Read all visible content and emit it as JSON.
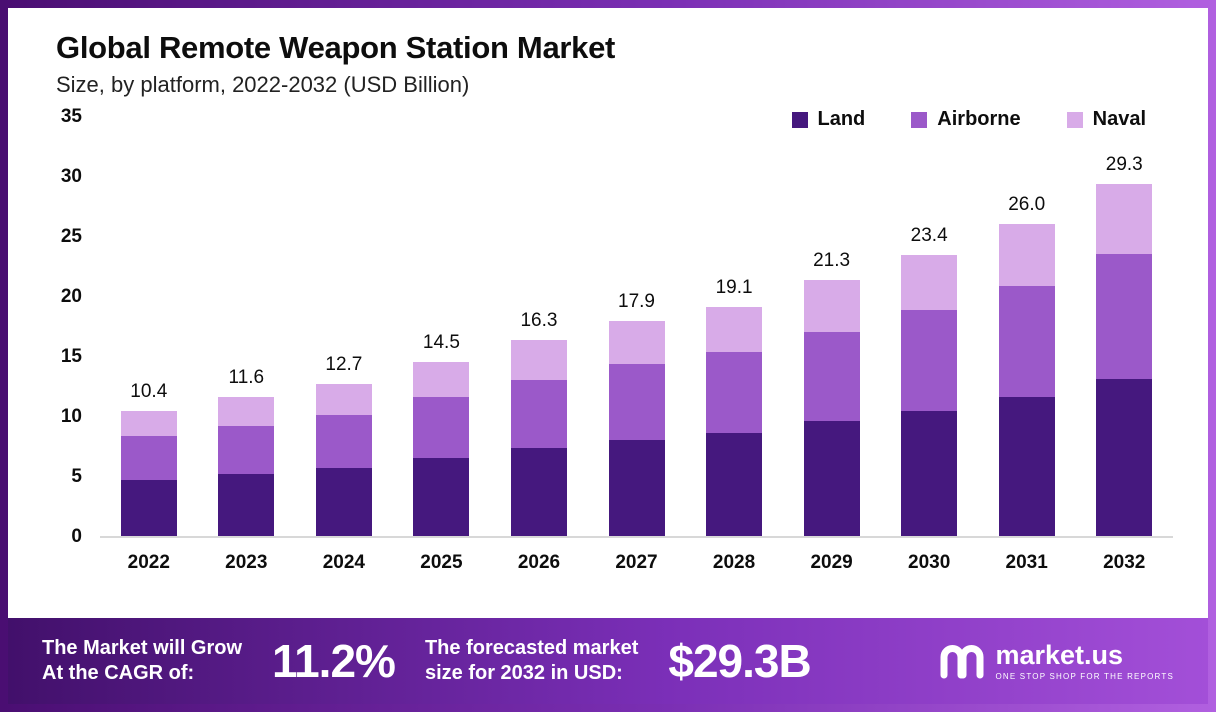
{
  "header": {
    "title": "Global Remote Weapon Station Market",
    "subtitle": "Size, by platform, 2022-2032 (USD Billion)"
  },
  "legend": [
    {
      "label": "Land",
      "color": "#45187e"
    },
    {
      "label": "Airborne",
      "color": "#9b59c9"
    },
    {
      "label": "Naval",
      "color": "#d8abe8"
    }
  ],
  "chart_data": {
    "type": "bar",
    "stacked": true,
    "title": "Global Remote Weapon Station Market",
    "subtitle": "Size, by platform, 2022-2032 (USD Billion)",
    "categories": [
      "2022",
      "2023",
      "2024",
      "2025",
      "2026",
      "2027",
      "2028",
      "2029",
      "2030",
      "2031",
      "2032"
    ],
    "series": [
      {
        "name": "Land",
        "color": "#45187e",
        "values": [
          4.7,
          5.2,
          5.7,
          6.5,
          7.3,
          8.0,
          8.6,
          9.6,
          10.4,
          11.6,
          13.1
        ]
      },
      {
        "name": "Airborne",
        "color": "#9b59c9",
        "values": [
          3.6,
          4.0,
          4.4,
          5.1,
          5.7,
          6.3,
          6.7,
          7.4,
          8.4,
          9.2,
          10.4
        ]
      },
      {
        "name": "Naval",
        "color": "#d8abe8",
        "values": [
          2.1,
          2.4,
          2.6,
          2.9,
          3.3,
          3.6,
          3.8,
          4.3,
          4.6,
          5.2,
          5.8
        ]
      }
    ],
    "totals": [
      "10.4",
      "11.6",
      "12.7",
      "14.5",
      "16.3",
      "17.9",
      "19.1",
      "21.3",
      "23.4",
      "26.0",
      "29.3"
    ],
    "xlabel": "",
    "ylabel": "",
    "ylim": [
      0,
      35
    ],
    "yticks": [
      0,
      5,
      10,
      15,
      20,
      25,
      30,
      35
    ],
    "grid": false,
    "legend_position": "top-right"
  },
  "banner": {
    "cagr_label_line1": "The Market will Grow",
    "cagr_label_line2": "At the CAGR of:",
    "cagr_value": "11.2%",
    "forecast_label_line1": "The forecasted market",
    "forecast_label_line2": "size for 2032 in USD:",
    "forecast_value": "$29.3B",
    "brand": "market.us",
    "brand_tagline": "ONE STOP SHOP FOR THE REPORTS"
  },
  "colors": {
    "frame_gradient_start": "#4a0e72",
    "frame_gradient_end": "#b160e0",
    "banner_gradient_start": "#42106b",
    "banner_gradient_end": "#a34fd8",
    "land": "#45187e",
    "airborne": "#9b59c9",
    "naval": "#d8abe8"
  }
}
